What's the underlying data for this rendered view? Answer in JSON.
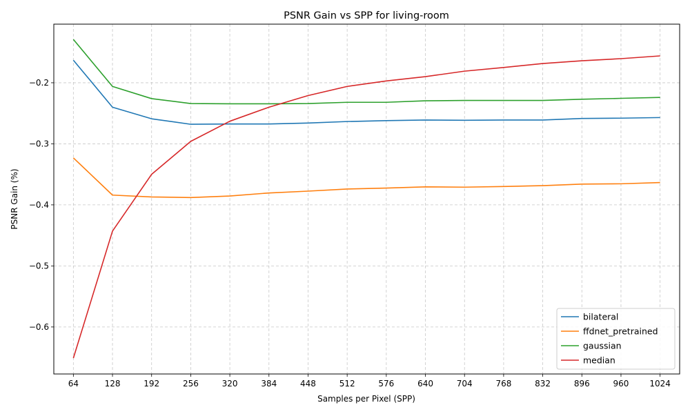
{
  "chart_data": {
    "type": "line",
    "title": "PSNR Gain vs SPP for living-room",
    "xlabel": "Samples per Pixel (SPP)",
    "ylabel": "PSNR Gain (%)",
    "x": [
      64,
      128,
      192,
      256,
      320,
      384,
      448,
      512,
      576,
      640,
      704,
      768,
      832,
      896,
      960,
      1024
    ],
    "x_tick_labels": [
      "64",
      "128",
      "192",
      "256",
      "320",
      "384",
      "448",
      "512",
      "576",
      "640",
      "704",
      "768",
      "832",
      "896",
      "960",
      "1024"
    ],
    "ylim": [
      -0.677,
      -0.104
    ],
    "y_ticks": [
      -0.6,
      -0.5,
      -0.4,
      -0.3,
      -0.2
    ],
    "y_tick_labels": [
      "−0.6",
      "−0.5",
      "−0.4",
      "−0.3",
      "−0.2"
    ],
    "grid": true,
    "legend_position": "bottom-right",
    "series": [
      {
        "name": "bilateral",
        "color": "#1f77b4",
        "values": [
          -0.163,
          -0.24,
          -0.259,
          -0.268,
          -0.2675,
          -0.2675,
          -0.266,
          -0.2635,
          -0.262,
          -0.261,
          -0.2615,
          -0.261,
          -0.261,
          -0.2585,
          -0.258,
          -0.257
        ]
      },
      {
        "name": "ffdnet_pretrained",
        "color": "#ff7f0e",
        "values": [
          -0.323,
          -0.384,
          -0.387,
          -0.388,
          -0.3855,
          -0.3805,
          -0.3775,
          -0.374,
          -0.3725,
          -0.3705,
          -0.371,
          -0.37,
          -0.3685,
          -0.366,
          -0.3655,
          -0.3635
        ]
      },
      {
        "name": "gaussian",
        "color": "#2ca02c",
        "values": [
          -0.129,
          -0.206,
          -0.226,
          -0.234,
          -0.2345,
          -0.2345,
          -0.234,
          -0.232,
          -0.232,
          -0.2295,
          -0.229,
          -0.229,
          -0.229,
          -0.227,
          -0.2255,
          -0.224
        ]
      },
      {
        "name": "median",
        "color": "#d62728",
        "values": [
          -0.651,
          -0.443,
          -0.35,
          -0.296,
          -0.263,
          -0.24,
          -0.221,
          -0.206,
          -0.197,
          -0.19,
          -0.181,
          -0.175,
          -0.1685,
          -0.164,
          -0.1605,
          -0.156
        ]
      }
    ]
  }
}
